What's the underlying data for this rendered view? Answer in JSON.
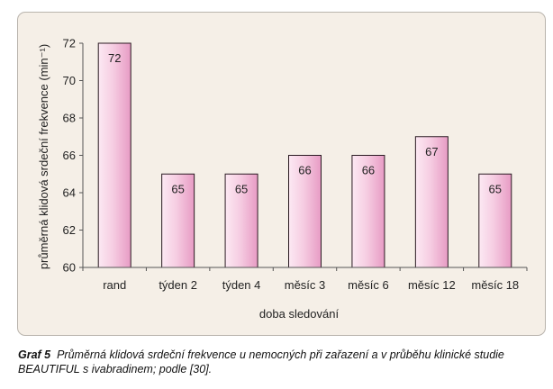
{
  "chart_data": {
    "type": "bar",
    "categories": [
      "rand",
      "týden 2",
      "týden 4",
      "měsíc 3",
      "měsíc 6",
      "měsíc 12",
      "měsíc 18"
    ],
    "values": [
      72,
      65,
      65,
      66,
      66,
      67,
      65
    ],
    "data_labels": [
      "72",
      "65",
      "65",
      "66",
      "66",
      "67",
      "65"
    ],
    "ylim": [
      60,
      72
    ],
    "yticks": [
      "60",
      "62",
      "64",
      "66",
      "68",
      "70",
      "72"
    ],
    "xlabel": "doba sledování",
    "ylabel": "průměrná klidová srdeční frekvence (min⁻¹)",
    "grid": false,
    "colors": {
      "bar_light": "#fce9f3",
      "bar_dark": "#e79bc4",
      "bar_stroke": "#2a1a22",
      "panel_bg": "#f5efe7"
    }
  },
  "caption": {
    "label": "Graf 5",
    "text": "Průměrná klidová srdeční frekvence u nemocných při zařazení a v průběhu klinické studie BEAUTIFUL s ivabradinem; podle [30]."
  }
}
